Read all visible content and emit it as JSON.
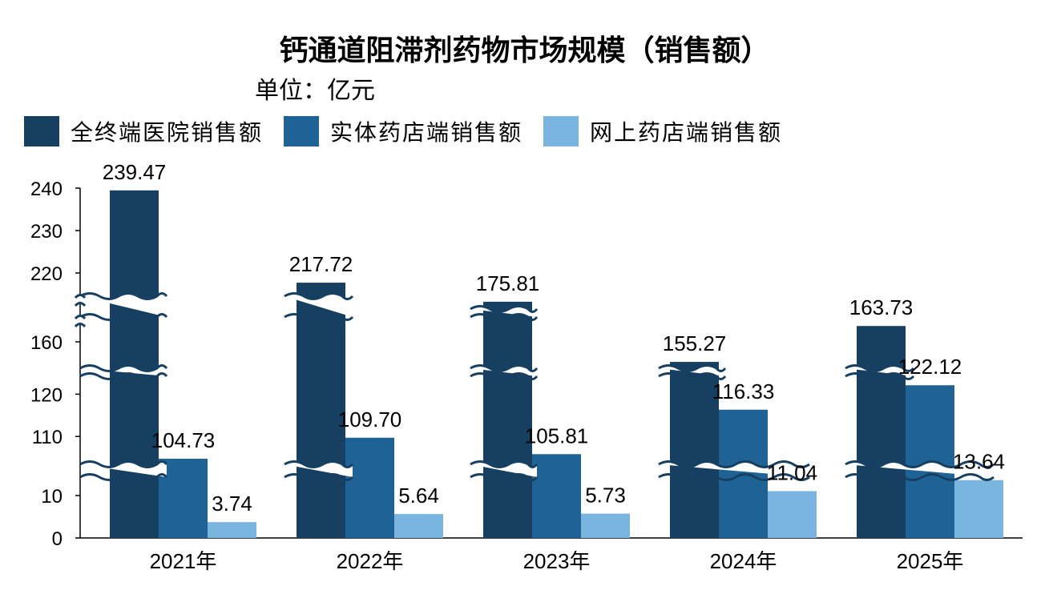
{
  "title": "钙通道阻滞剂药物市场规模（销售额）",
  "subtitle": "单位：亿元",
  "chart_data": {
    "type": "bar",
    "title": "钙通道阻滞剂药物市场规模（销售额）",
    "subtitle": "单位：亿元",
    "categories": [
      "2021年",
      "2022年",
      "2023年",
      "2024年",
      "2025年"
    ],
    "series": [
      {
        "name": "全终端医院销售额",
        "color": "#163f62",
        "values": [
          239.47,
          217.72,
          175.81,
          155.27,
          163.73
        ],
        "labels": [
          "239.47",
          "217.72",
          "175.81",
          "155.27",
          "163.73"
        ]
      },
      {
        "name": "实体药店端销售额",
        "color": "#1f6396",
        "values": [
          104.73,
          109.7,
          105.81,
          116.33,
          122.12
        ],
        "labels": [
          "104.73",
          "109.70",
          "105.81",
          "116.33",
          "122.12"
        ]
      },
      {
        "name": "网上药店端销售额",
        "color": "#7ab5e0",
        "values": [
          3.74,
          5.64,
          5.73,
          11.04,
          13.64
        ],
        "labels": [
          "3.74",
          "5.64",
          "5.73",
          "11.04",
          "13.64"
        ]
      }
    ],
    "y_ticks": [
      0,
      10,
      110,
      120,
      160,
      220,
      230,
      240
    ],
    "y_tick_labels": [
      "0",
      "10",
      "110",
      "120",
      "160",
      "220",
      "230",
      "240"
    ],
    "broken_axis": true,
    "legend_position": "top-left",
    "grid": false
  }
}
